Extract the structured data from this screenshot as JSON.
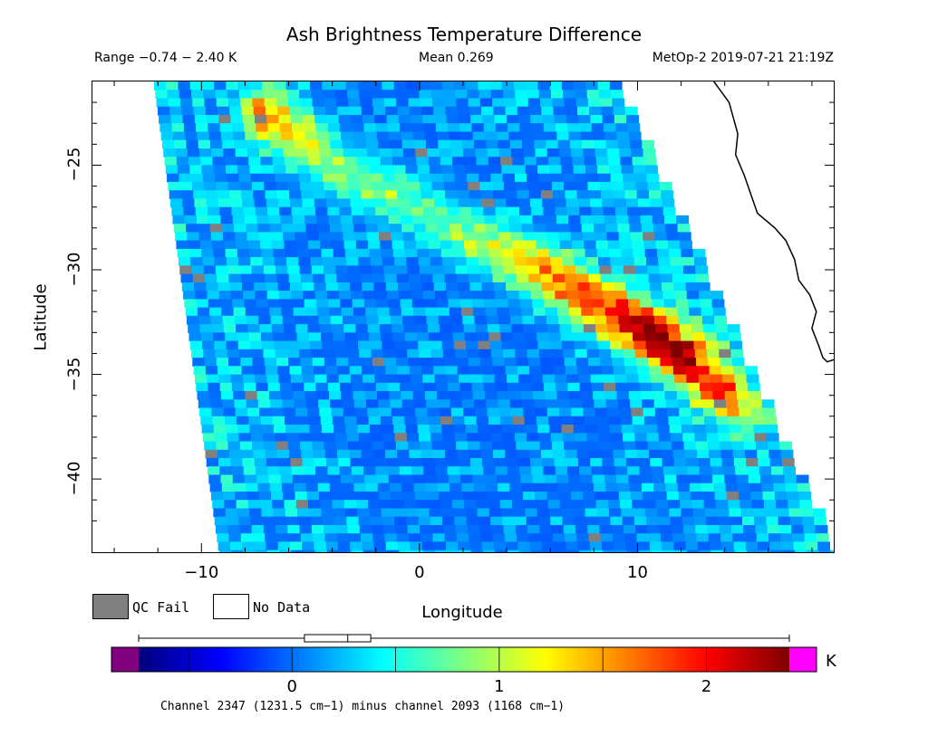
{
  "header": {
    "title": "Ash Brightness Temperature Difference",
    "range": "Range −0.74 − 2.40 K",
    "mean": "Mean 0.269",
    "satellite": "MetOp-2 2019-07-21 21:19Z"
  },
  "legend": {
    "qc_fail_label": "QC Fail",
    "no_data_label": "No Data",
    "qc_fail_color": "#808080",
    "no_data_color": "#ffffff"
  },
  "colorbar": {
    "unit": "K",
    "ticks": [
      "0",
      "1",
      "2"
    ],
    "tick_values": [
      0,
      1,
      2
    ],
    "min": -0.74,
    "max": 2.4,
    "under_color": "#800080",
    "over_color": "#ff00ff"
  },
  "caption": "Channel 2347 (1231.5 cm−1) minus channel 2093 (1168 cm−1)",
  "chart_data": {
    "type": "heatmap",
    "title": "Ash Brightness Temperature Difference",
    "xlabel": "Longitude",
    "ylabel": "Latitude",
    "xlim": [
      -15,
      19
    ],
    "ylim": [
      -43.5,
      -21
    ],
    "xticks": [
      "−10",
      "0",
      "10"
    ],
    "xtick_values": [
      -10,
      0,
      10
    ],
    "yticks": [
      "−25",
      "−30",
      "−35",
      "−40"
    ],
    "ytick_values": [
      -25,
      -30,
      -35,
      -40
    ],
    "value_range": [
      -0.74,
      2.4
    ],
    "mean": 0.269,
    "colormap": "jet",
    "swath_edges_lon": {
      "west_at_lat_min21": -12.2,
      "west_at_lat_min43_5": -9.2,
      "east_at_lat_min21": 8.9,
      "east_at_lat_min43_5": 18.9
    },
    "ash_plume": [
      {
        "lon": -7.0,
        "lat": -22.5,
        "value": 1.5
      },
      {
        "lon": -4.0,
        "lat": -25.0,
        "value": 0.75
      },
      {
        "lon": 1.5,
        "lat": -28.0,
        "value": 0.7
      },
      {
        "lon": 5.5,
        "lat": -30.0,
        "value": 1.4
      },
      {
        "lon": 8.0,
        "lat": -31.5,
        "value": 1.8
      },
      {
        "lon": 10.5,
        "lat": -33.0,
        "value": 2.3
      },
      {
        "lon": 12.5,
        "lat": -34.5,
        "value": 2.0
      },
      {
        "lon": 14.5,
        "lat": -36.5,
        "value": 1.2
      }
    ],
    "coastline": [
      [
        13.5,
        -21.0
      ],
      [
        14.2,
        -22.0
      ],
      [
        14.6,
        -23.5
      ],
      [
        14.5,
        -24.5
      ],
      [
        14.9,
        -25.5
      ],
      [
        15.3,
        -26.7
      ],
      [
        15.5,
        -27.3
      ],
      [
        16.3,
        -28.0
      ],
      [
        16.8,
        -28.6
      ],
      [
        17.2,
        -29.5
      ],
      [
        17.4,
        -30.5
      ],
      [
        17.9,
        -31.2
      ],
      [
        18.2,
        -32.0
      ],
      [
        18.0,
        -32.8
      ],
      [
        18.3,
        -33.6
      ],
      [
        18.5,
        -34.2
      ],
      [
        18.7,
        -34.4
      ],
      [
        19.0,
        -34.3
      ]
    ]
  }
}
